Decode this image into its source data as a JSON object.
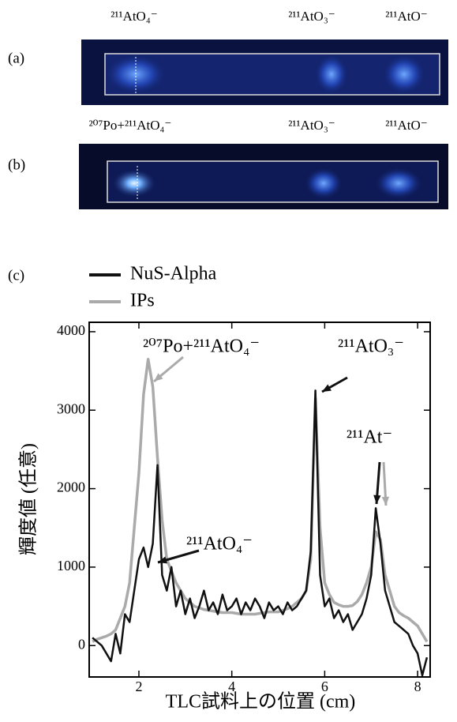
{
  "image_panels": [
    {
      "label": "(a)",
      "annotations": [
        "²¹¹AtO₄⁻",
        "²¹¹AtO₃⁻",
        "²¹¹AtO⁻"
      ]
    },
    {
      "label": "(b)",
      "annotations": [
        "²⁰⁷Po+²¹¹AtO₄⁻",
        "²¹¹AtO₃⁻",
        "²¹¹AtO⁻"
      ]
    }
  ],
  "chart_data": {
    "type": "line",
    "panel_label": "(c)",
    "x_label": "TLC試料上の位置 (cm)",
    "y_label": "輝度値 (任意)",
    "xlim": [
      0.93,
      8.27
    ],
    "ylim": [
      -400,
      4120
    ],
    "xticks": [
      2,
      4,
      6,
      8
    ],
    "yticks": [
      0,
      1000,
      2000,
      3000,
      4000
    ],
    "legend": "top-left",
    "annotations": [
      "²⁰⁷Po+²¹¹AtO₄⁻",
      "²¹¹AtO₃⁻",
      "²¹¹At⁻",
      "²¹¹AtO₄⁻"
    ],
    "x": [
      1.0,
      1.1,
      1.2,
      1.3,
      1.4,
      1.5,
      1.6,
      1.7,
      1.8,
      1.9,
      2.0,
      2.1,
      2.2,
      2.3,
      2.4,
      2.5,
      2.6,
      2.7,
      2.8,
      2.9,
      3.0,
      3.1,
      3.2,
      3.3,
      3.4,
      3.5,
      3.6,
      3.7,
      3.8,
      3.9,
      4.0,
      4.1,
      4.2,
      4.3,
      4.4,
      4.5,
      4.6,
      4.7,
      4.8,
      4.9,
      5.0,
      5.1,
      5.2,
      5.3,
      5.4,
      5.5,
      5.6,
      5.7,
      5.8,
      5.9,
      6.0,
      6.1,
      6.2,
      6.3,
      6.4,
      6.5,
      6.6,
      6.7,
      6.8,
      6.9,
      7.0,
      7.1,
      7.2,
      7.3,
      7.4,
      7.5,
      7.6,
      7.7,
      7.8,
      7.9,
      8.0,
      8.1,
      8.2
    ],
    "series": [
      {
        "name": "NuS-Alpha",
        "color": "#111111",
        "values": [
          100,
          50,
          0,
          -100,
          -200,
          150,
          -100,
          400,
          300,
          700,
          1100,
          1250,
          1000,
          1300,
          2300,
          900,
          700,
          1000,
          500,
          700,
          400,
          600,
          350,
          500,
          700,
          450,
          550,
          400,
          650,
          450,
          500,
          600,
          400,
          550,
          450,
          600,
          500,
          350,
          550,
          450,
          500,
          400,
          550,
          450,
          500,
          600,
          700,
          1200,
          3250,
          900,
          500,
          600,
          350,
          450,
          300,
          400,
          200,
          300,
          400,
          600,
          900,
          1750,
          1300,
          700,
          500,
          300,
          250,
          200,
          150,
          0,
          -100,
          -380,
          -150
        ]
      },
      {
        "name": "IPs",
        "color": "#aaaaaa",
        "values": [
          50,
          80,
          100,
          120,
          150,
          200,
          350,
          500,
          800,
          1500,
          2200,
          3200,
          3650,
          3300,
          2400,
          1600,
          1100,
          950,
          800,
          700,
          600,
          550,
          500,
          480,
          460,
          450,
          440,
          430,
          420,
          420,
          420,
          410,
          400,
          400,
          400,
          400,
          410,
          420,
          430,
          430,
          430,
          450,
          470,
          500,
          550,
          600,
          700,
          1100,
          3150,
          1500,
          800,
          650,
          550,
          520,
          500,
          500,
          510,
          560,
          650,
          800,
          1000,
          1450,
          1350,
          900,
          700,
          500,
          420,
          380,
          350,
          300,
          250,
          150,
          50
        ]
      }
    ]
  }
}
